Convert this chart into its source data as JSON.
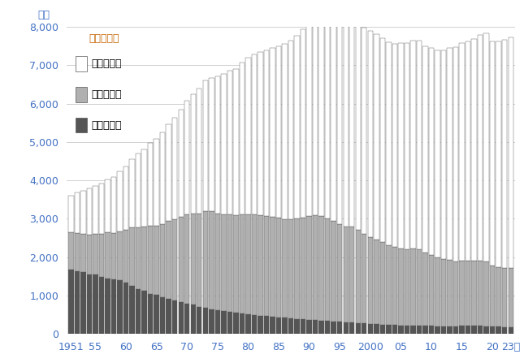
{
  "years": [
    1951,
    1952,
    1953,
    1954,
    1955,
    1956,
    1957,
    1958,
    1959,
    1960,
    1961,
    1962,
    1963,
    1964,
    1965,
    1966,
    1967,
    1968,
    1969,
    1970,
    1971,
    1972,
    1973,
    1974,
    1975,
    1976,
    1977,
    1978,
    1979,
    1980,
    1981,
    1982,
    1983,
    1984,
    1985,
    1986,
    1987,
    1988,
    1989,
    1990,
    1991,
    1992,
    1993,
    1994,
    1995,
    1996,
    1997,
    1998,
    1999,
    2000,
    2001,
    2002,
    2003,
    2004,
    2005,
    2006,
    2007,
    2008,
    2009,
    2010,
    2011,
    2012,
    2013,
    2014,
    2015,
    2016,
    2017,
    2018,
    2019,
    2020,
    2021,
    2022,
    2023
  ],
  "primary": [
    1681,
    1627,
    1601,
    1556,
    1541,
    1491,
    1450,
    1430,
    1397,
    1330,
    1260,
    1175,
    1115,
    1045,
    1009,
    961,
    912,
    870,
    837,
    793,
    760,
    710,
    676,
    647,
    617,
    590,
    567,
    554,
    539,
    506,
    492,
    478,
    466,
    453,
    437,
    420,
    411,
    394,
    379,
    365,
    358,
    349,
    336,
    324,
    315,
    303,
    297,
    287,
    275,
    265,
    255,
    245,
    238,
    232,
    224,
    222,
    219,
    215,
    210,
    205,
    200,
    198,
    196,
    194,
    209,
    210,
    207,
    205,
    202,
    192,
    186,
    180,
    175
  ],
  "secondary": [
    960,
    990,
    1010,
    1030,
    1060,
    1120,
    1190,
    1200,
    1280,
    1390,
    1510,
    1600,
    1680,
    1780,
    1810,
    1900,
    2030,
    2110,
    2210,
    2320,
    2380,
    2430,
    2530,
    2550,
    2520,
    2530,
    2540,
    2530,
    2570,
    2610,
    2620,
    2620,
    2600,
    2600,
    2590,
    2570,
    2570,
    2620,
    2660,
    2700,
    2740,
    2720,
    2670,
    2610,
    2540,
    2500,
    2490,
    2420,
    2320,
    2260,
    2210,
    2140,
    2070,
    2030,
    2000,
    1990,
    2010,
    1990,
    1900,
    1850,
    1790,
    1760,
    1740,
    1700,
    1700,
    1700,
    1710,
    1710,
    1690,
    1580,
    1560,
    1540,
    1540
  ],
  "tertiary": [
    960,
    1070,
    1120,
    1200,
    1260,
    1310,
    1380,
    1450,
    1560,
    1650,
    1780,
    1920,
    2020,
    2150,
    2260,
    2390,
    2520,
    2660,
    2790,
    2960,
    3110,
    3260,
    3400,
    3480,
    3570,
    3660,
    3740,
    3820,
    3950,
    4090,
    4170,
    4240,
    4310,
    4390,
    4460,
    4560,
    4650,
    4760,
    4900,
    5070,
    5170,
    5270,
    5340,
    5360,
    5410,
    5460,
    5510,
    5450,
    5380,
    5360,
    5340,
    5310,
    5290,
    5300,
    5350,
    5370,
    5410,
    5430,
    5390,
    5390,
    5400,
    5420,
    5510,
    5570,
    5660,
    5700,
    5770,
    5870,
    5940,
    5840,
    5880,
    5940,
    6000
  ],
  "color_primary": "#555555",
  "color_secondary": "#b0b0b0",
  "color_tertiary": "#ffffff",
  "bar_edge_color": "#555555",
  "bar_edge_width": 0.3,
  "legend_title": "上から順に",
  "ylabel": "万人",
  "label_tertiary": "第三次産業",
  "label_secondary": "第二次産業",
  "label_primary": "第一次産業",
  "yticks": [
    0,
    1000,
    2000,
    3000,
    4000,
    5000,
    6000,
    7000,
    8000
  ],
  "xtick_labels": [
    "1951",
    "55",
    "60",
    "65",
    "70",
    "75",
    "80",
    "85",
    "90",
    "95",
    "2000",
    "05",
    "10",
    "15",
    "20",
    "23年"
  ],
  "xtick_years": [
    1951,
    1955,
    1960,
    1965,
    1970,
    1975,
    1980,
    1985,
    1990,
    1995,
    2000,
    2005,
    2010,
    2015,
    2020,
    2023
  ],
  "ylim": [
    0,
    8000
  ],
  "background_color": "#ffffff",
  "legend_title_color": "#c8690a",
  "legend_item_color": "#000000",
  "tick_color": "#4472c4",
  "grid_color": "#d0d0d0"
}
